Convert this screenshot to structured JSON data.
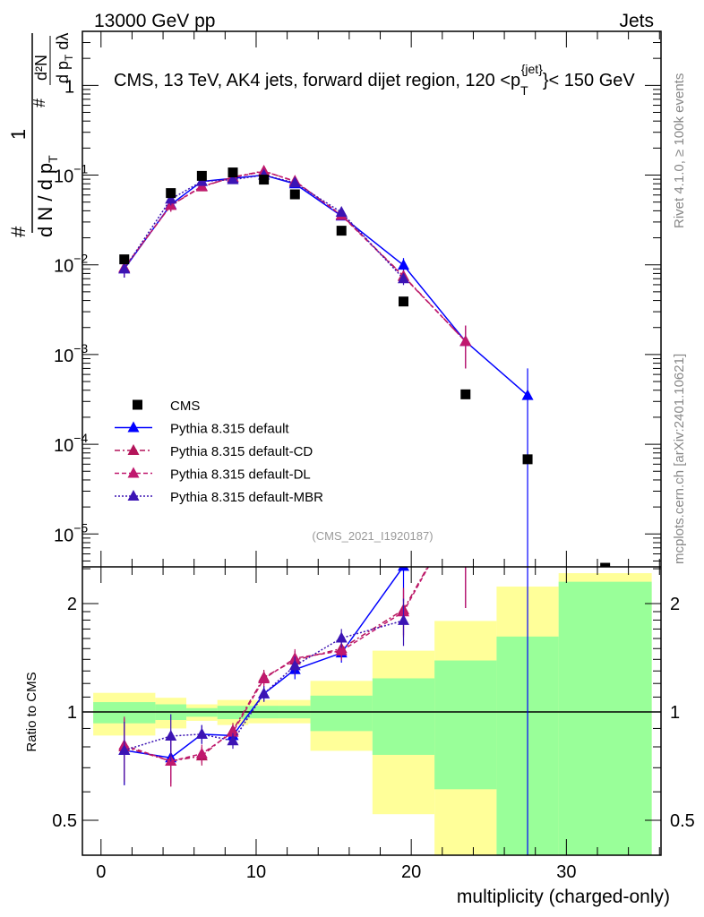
{
  "header": {
    "left": "13000 GeV pp",
    "right": "Jets"
  },
  "side_labels": {
    "rivet": "Rivet 4.1.0, ≥ 100k events",
    "mcplots": "mcplots.cern.ch [arXiv:2401.10621]"
  },
  "chart_data": {
    "type": "scatter",
    "title": "CMS, 13 TeV, AK4 jets, forward dijet region, 120 <p_T^{jet}< 150 GeV",
    "title_parts": {
      "main": "CMS, 13 TeV, AK4 jets, forward dijet region, 120 <p",
      "sub": "T",
      "sup": "{jet}",
      "tail": "}< 150 GeV"
    },
    "ylabel": {
      "one": "1",
      "num_hash": "#",
      "den": "d N / d p",
      "den_sub": "T",
      "num2": "d²N",
      "den2": "d p",
      "den2_sub": "T",
      "den2_tail": " dλ"
    },
    "xlabel": "multiplicity (charged-only)",
    "ratio_ylabel": "Ratio to CMS",
    "watermark": "(CMS_2021_I1920187)",
    "xlim": [
      -1.2,
      36.1
    ],
    "ylim": [
      4.3e-06,
      4.0
    ],
    "yscale": "log",
    "ratio_ylim": [
      0.4,
      2.53
    ],
    "x_ticks": [
      0,
      10,
      20,
      30
    ],
    "x_tick_labels": [
      "0",
      "10",
      "20",
      "30"
    ],
    "y_ticks": [
      1,
      0.1,
      0.01,
      0.001,
      0.0001,
      1e-05
    ],
    "y_tick_labels": [
      {
        "base": "1",
        "exp": ""
      },
      {
        "base": "10",
        "exp": "−1"
      },
      {
        "base": "10",
        "exp": "−2"
      },
      {
        "base": "10",
        "exp": "−3"
      },
      {
        "base": "10",
        "exp": "−4"
      },
      {
        "base": "10",
        "exp": "−5"
      }
    ],
    "ratio_ticks": [
      0.5,
      1,
      2
    ],
    "ratio_tick_labels": [
      "0.5",
      "1",
      "2"
    ],
    "bin_edges": [
      -0.5,
      3.5,
      5.5,
      7.5,
      9.5,
      11.5,
      13.5,
      17.5,
      21.5,
      25.5,
      29.5,
      35.5
    ],
    "x": [
      1.5,
      4.5,
      6.5,
      8.5,
      10.5,
      12.5,
      15.5,
      19.5,
      23.5,
      27.5,
      32.5
    ],
    "data": {
      "name": "CMS",
      "values": [
        0.0115,
        0.063,
        0.098,
        0.107,
        0.089,
        0.061,
        0.024,
        0.0039,
        0.00036,
        6.8e-05,
        4.2e-06
      ]
    },
    "band_green": [
      [
        0.93,
        1.065
      ],
      [
        0.95,
        1.05
      ],
      [
        0.97,
        1.025
      ],
      [
        0.955,
        1.04
      ],
      [
        0.96,
        1.04
      ],
      [
        0.96,
        1.04
      ],
      [
        0.885,
        1.11
      ],
      [
        0.76,
        1.24
      ],
      [
        0.61,
        1.39
      ],
      [
        0.3,
        1.62
      ],
      [
        0.3,
        2.3
      ]
    ],
    "band_yellow": [
      [
        0.86,
        1.13
      ],
      [
        0.9,
        1.095
      ],
      [
        0.945,
        1.05
      ],
      [
        0.92,
        1.08
      ],
      [
        0.93,
        1.08
      ],
      [
        0.93,
        1.08
      ],
      [
        0.78,
        1.22
      ],
      [
        0.52,
        1.48
      ],
      [
        0.3,
        1.79
      ],
      [
        0.3,
        2.23
      ],
      [
        0.3,
        2.43
      ]
    ],
    "legend": {
      "placement": "lower-left"
    },
    "series": [
      {
        "name": "Pythia 8.315 default",
        "color": "#0000ff",
        "dash": "",
        "values": [
          0.009,
          0.047,
          0.085,
          0.092,
          0.1,
          0.08,
          0.035,
          0.0099,
          0.0014,
          0.00035,
          null
        ],
        "rel_err": [
          0.2,
          0.15,
          0.06,
          0.05,
          0.05,
          0.06,
          0.06,
          0.2,
          0.5,
          1.0,
          0
        ]
      },
      {
        "name": "Pythia 8.315 default-CD",
        "color": "#b4145a",
        "dash": "6,3,2,3",
        "values": [
          0.0092,
          0.046,
          0.074,
          0.095,
          0.111,
          0.085,
          0.036,
          0.0075,
          0.0014,
          null,
          null
        ],
        "rel_err": [
          0.2,
          0.15,
          0.06,
          0.05,
          0.05,
          0.06,
          0.06,
          0.15,
          0.5,
          0,
          0
        ]
      },
      {
        "name": "Pythia 8.315 default-DL",
        "color": "#c0186e",
        "dash": "5,3",
        "values": [
          0.0093,
          0.046,
          0.075,
          0.094,
          0.11,
          0.086,
          0.0355,
          0.0074,
          0.0014,
          null,
          null
        ],
        "rel_err": [
          0.2,
          0.15,
          0.06,
          0.05,
          0.05,
          0.06,
          0.06,
          0.15,
          0.5,
          0,
          0
        ]
      },
      {
        "name": "Pythia 8.315 default-MBR",
        "color": "#3c14b4",
        "dash": "2,2",
        "values": [
          0.009,
          0.054,
          0.085,
          0.089,
          0.1,
          0.082,
          0.0385,
          0.007,
          null,
          null,
          null
        ],
        "rel_err": [
          0.2,
          0.15,
          0.06,
          0.05,
          0.05,
          0.06,
          0.06,
          0.15,
          0,
          0,
          0
        ]
      }
    ]
  }
}
